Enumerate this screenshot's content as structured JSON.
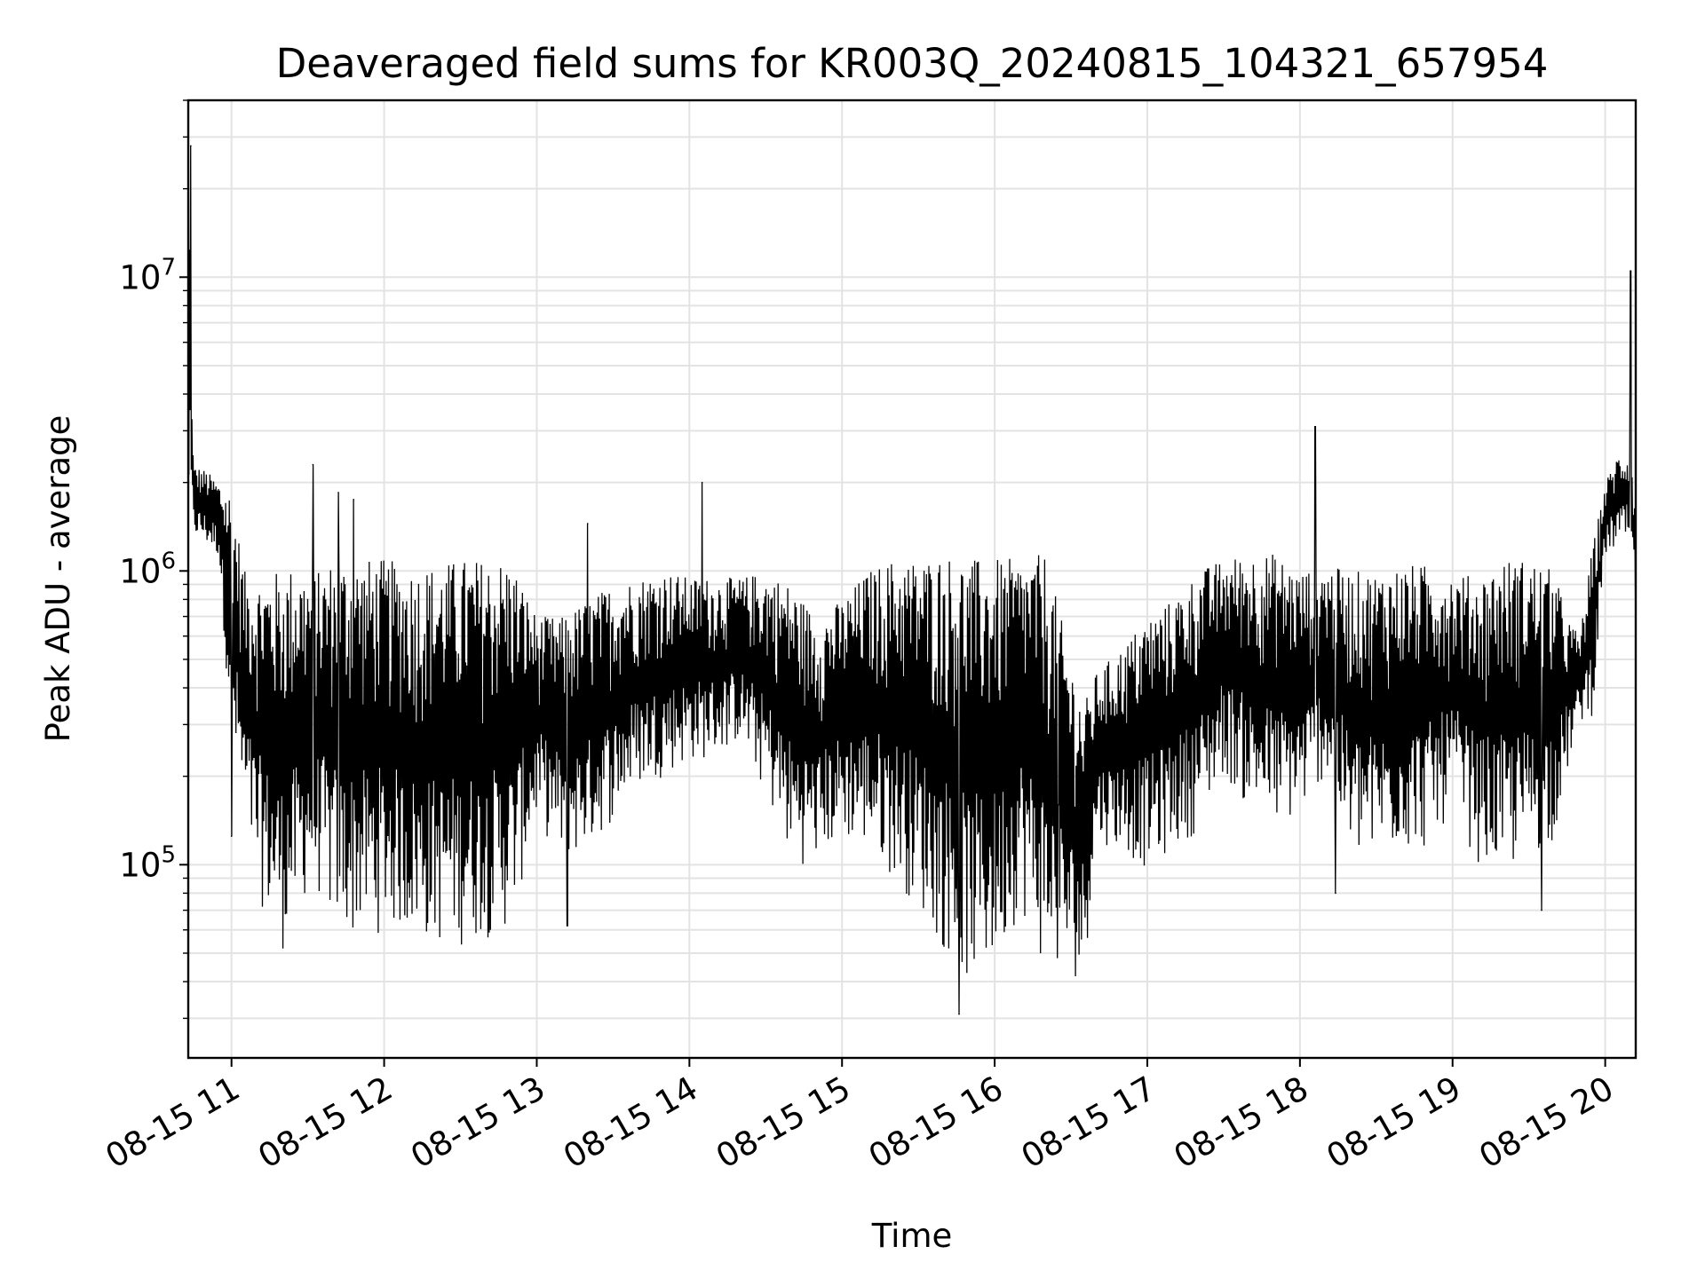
{
  "chart_data": {
    "type": "line",
    "title": "Deaveraged field sums for KR003Q_20240815_104321_657954",
    "xlabel": "Time",
    "ylabel": "Peak ADU - average",
    "yscale": "log",
    "xlim": [
      "08-15 10:43",
      "08-15 20:12"
    ],
    "ylim": [
      22000,
      40000000
    ],
    "grid": true,
    "line_color": "#000000",
    "x_ticks": [
      {
        "t": "08-15 11:00",
        "label": "08-15 11"
      },
      {
        "t": "08-15 12:00",
        "label": "08-15 12"
      },
      {
        "t": "08-15 13:00",
        "label": "08-15 13"
      },
      {
        "t": "08-15 14:00",
        "label": "08-15 14"
      },
      {
        "t": "08-15 15:00",
        "label": "08-15 15"
      },
      {
        "t": "08-15 16:00",
        "label": "08-15 16"
      },
      {
        "t": "08-15 17:00",
        "label": "08-15 17"
      },
      {
        "t": "08-15 18:00",
        "label": "08-15 18"
      },
      {
        "t": "08-15 19:00",
        "label": "08-15 19"
      },
      {
        "t": "08-15 20:00",
        "label": "08-15 20"
      }
    ],
    "y_ticks": [
      {
        "value": 100000,
        "base": "10",
        "exp": "5"
      },
      {
        "value": 1000000,
        "base": "10",
        "exp": "6"
      },
      {
        "value": 10000000,
        "base": "10",
        "exp": "7"
      }
    ],
    "series": [
      {
        "band_x": [
          "08-15 10:43",
          "08-15 10:45",
          "08-15 10:50",
          "08-15 10:55",
          "08-15 11:00",
          "08-15 11:05",
          "08-15 11:10",
          "08-15 11:15",
          "08-15 11:20",
          "08-15 11:25",
          "08-15 11:30",
          "08-15 11:35",
          "08-15 11:40",
          "08-15 11:45",
          "08-15 11:50",
          "08-15 11:55",
          "08-15 12:00",
          "08-15 12:10",
          "08-15 12:20",
          "08-15 12:30",
          "08-15 12:40",
          "08-15 12:50",
          "08-15 13:00",
          "08-15 13:10",
          "08-15 13:20",
          "08-15 13:30",
          "08-15 13:40",
          "08-15 13:50",
          "08-15 14:00",
          "08-15 14:10",
          "08-15 14:20",
          "08-15 14:30",
          "08-15 14:40",
          "08-15 14:50",
          "08-15 15:00",
          "08-15 15:10",
          "08-15 15:20",
          "08-15 15:30",
          "08-15 15:40",
          "08-15 15:50",
          "08-15 16:00",
          "08-15 16:10",
          "08-15 16:20",
          "08-15 16:30",
          "08-15 16:35",
          "08-15 16:40",
          "08-15 16:50",
          "08-15 17:00",
          "08-15 17:10",
          "08-15 17:20",
          "08-15 17:30",
          "08-15 17:40",
          "08-15 17:50",
          "08-15 18:00",
          "08-15 18:10",
          "08-15 18:20",
          "08-15 18:30",
          "08-15 18:40",
          "08-15 18:50",
          "08-15 19:00",
          "08-15 19:10",
          "08-15 19:20",
          "08-15 19:30",
          "08-15 19:40",
          "08-15 19:45",
          "08-15 19:50",
          "08-15 19:55",
          "08-15 20:00",
          "08-15 20:05",
          "08-15 20:10",
          "08-15 20:12"
        ],
        "band_low": [
          1300000,
          1300000,
          1200000,
          1100000,
          250000,
          130000,
          80000,
          60000,
          50000,
          60000,
          80000,
          75000,
          60000,
          55000,
          55000,
          55000,
          60000,
          55000,
          52000,
          52000,
          55000,
          60000,
          140000,
          100000,
          110000,
          140000,
          180000,
          200000,
          220000,
          230000,
          260000,
          170000,
          100000,
          100000,
          120000,
          110000,
          90000,
          70000,
          50000,
          38000,
          42000,
          70000,
          42000,
          40000,
          40000,
          120000,
          110000,
          95000,
          110000,
          130000,
          200000,
          150000,
          130000,
          140000,
          200000,
          100000,
          100000,
          110000,
          110000,
          150000,
          100000,
          90000,
          100000,
          120000,
          200000,
          300000,
          320000,
          1100000,
          1200000,
          1200000,
          800000
        ],
        "band_high": [
          30000000,
          2300000,
          2200000,
          2000000,
          1900000,
          1000000,
          950000,
          1000000,
          1000000,
          1050000,
          1000000,
          1000000,
          1100000,
          1100000,
          1100000,
          1100000,
          1100000,
          1050000,
          1050000,
          1100000,
          1100000,
          1100000,
          700000,
          700000,
          800000,
          900000,
          950000,
          1000000,
          950000,
          950000,
          950000,
          1000000,
          900000,
          700000,
          800000,
          1000000,
          1100000,
          1100000,
          1150000,
          1100000,
          1100000,
          1100000,
          1150000,
          500000,
          350000,
          450000,
          550000,
          700000,
          800000,
          1000000,
          1100000,
          1150000,
          1150000,
          1000000,
          1050000,
          1000000,
          1000000,
          1050000,
          1050000,
          1000000,
          950000,
          1100000,
          1100000,
          1000000,
          700000,
          600000,
          1200000,
          2000000,
          2500000,
          2600000,
          1600000
        ],
        "spikes": [
          {
            "t": "08-15 10:44",
            "value": 28000000
          },
          {
            "t": "08-15 11:00",
            "value": 125000
          },
          {
            "t": "08-15 11:32",
            "value": 2300000
          },
          {
            "t": "08-15 11:42",
            "value": 1850000
          },
          {
            "t": "08-15 11:48",
            "value": 1750000
          },
          {
            "t": "08-15 13:20",
            "value": 1450000
          },
          {
            "t": "08-15 13:12",
            "value": 62000
          },
          {
            "t": "08-15 14:05",
            "value": 2000000
          },
          {
            "t": "08-15 15:46",
            "value": 31000
          },
          {
            "t": "08-15 16:25",
            "value": 160000
          },
          {
            "t": "08-15 18:06",
            "value": 3100000
          },
          {
            "t": "08-15 18:14",
            "value": 80000
          },
          {
            "t": "08-15 19:35",
            "value": 70000
          },
          {
            "t": "08-15 20:10",
            "value": 10500000
          },
          {
            "t": "08-15 20:12",
            "value": 580000
          }
        ]
      }
    ]
  }
}
